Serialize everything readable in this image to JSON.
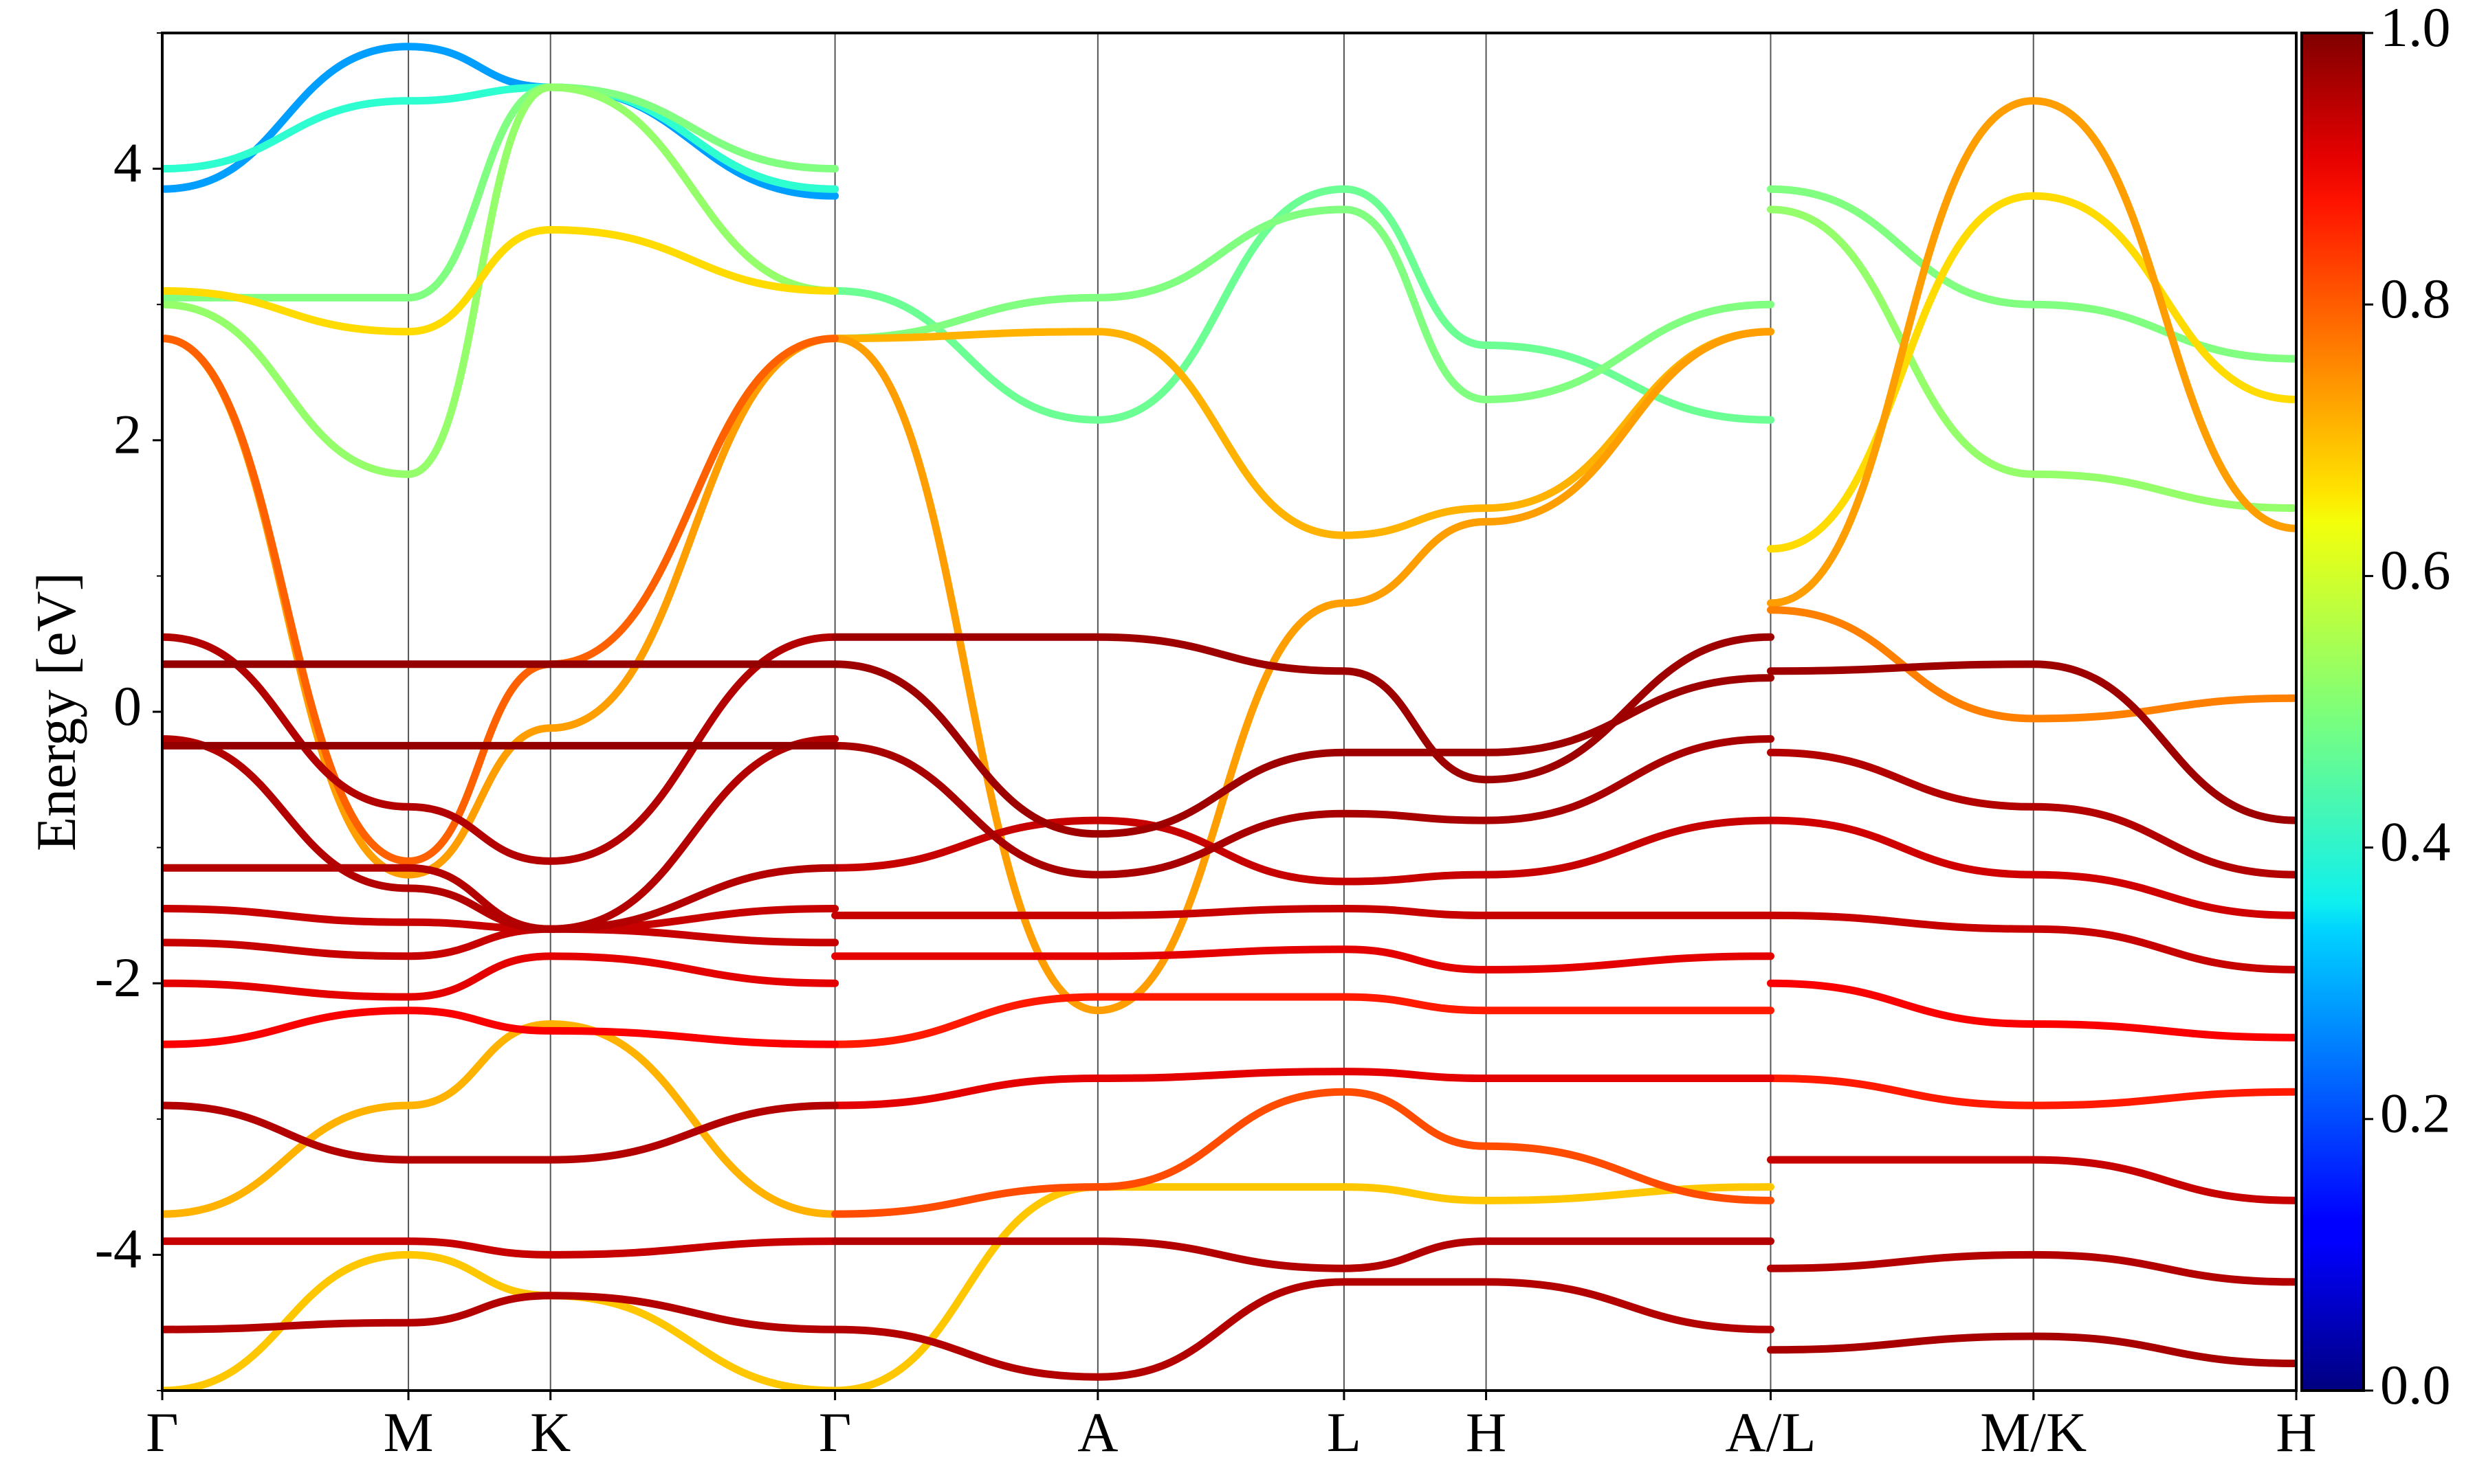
{
  "chart_data": {
    "type": "line",
    "title": "",
    "xlabel": "",
    "ylabel": "Energy [eV]",
    "ylim": [
      -5,
      5
    ],
    "yticks": [
      {
        "value": 4,
        "label": "4"
      },
      {
        "value": 2,
        "label": "2"
      },
      {
        "value": 0,
        "label": "0"
      },
      {
        "value": -2,
        "label": "-2"
      },
      {
        "value": -4,
        "label": "-4"
      }
    ],
    "kpath": [
      {
        "label": "Γ",
        "x": 0.0
      },
      {
        "label": "M",
        "x": 0.577
      },
      {
        "label": "K",
        "x": 0.91
      },
      {
        "label": "Γ",
        "x": 1.577
      },
      {
        "label": "A",
        "x": 2.193
      },
      {
        "label": "L",
        "x": 2.77
      },
      {
        "label": "H",
        "x": 3.103
      },
      {
        "label": "A/L",
        "x": 3.77
      },
      {
        "label": "M/K",
        "x": 4.386
      },
      {
        "label": "H",
        "x": 5.002
      }
    ],
    "xlim": [
      0,
      5.002
    ],
    "grid": false,
    "colorbar": {
      "range": [
        0.0,
        1.0
      ],
      "colormap": "jet",
      "ticks": [
        {
          "value": 0.0,
          "label": "0.0"
        },
        {
          "value": 0.2,
          "label": "0.2"
        },
        {
          "value": 0.4,
          "label": "0.4"
        },
        {
          "value": 0.6,
          "label": "0.6"
        },
        {
          "value": 0.8,
          "label": "0.8"
        },
        {
          "value": 1.0,
          "label": "1.0"
        }
      ]
    },
    "series": [
      {
        "x": [
          0.0,
          0.577,
          0.91,
          1.577
        ],
        "y": [
          2.75,
          -1.1,
          0.35,
          2.75
        ],
        "weight": 0.78
      },
      {
        "x": [
          0.0,
          0.577,
          0.91,
          1.577
        ],
        "y": [
          2.75,
          -1.2,
          -0.12,
          2.75
        ],
        "weight": 0.72
      },
      {
        "x": [
          0.0,
          0.577,
          0.91,
          1.577
        ],
        "y": [
          0.35,
          0.35,
          0.35,
          0.35
        ],
        "weight": 0.98
      },
      {
        "x": [
          0.0,
          0.577,
          0.91,
          1.577
        ],
        "y": [
          -0.25,
          -0.25,
          -0.25,
          -0.25
        ],
        "weight": 0.98
      },
      {
        "x": [
          0.0,
          0.577,
          0.91,
          1.577
        ],
        "y": [
          0.55,
          -0.7,
          -1.1,
          0.55
        ],
        "weight": 0.95
      },
      {
        "x": [
          0.0,
          0.577,
          0.91,
          1.577
        ],
        "y": [
          -0.2,
          -1.3,
          -1.6,
          -0.2
        ],
        "weight": 0.95
      },
      {
        "x": [
          0.0,
          0.577,
          0.91,
          1.577
        ],
        "y": [
          -1.15,
          -1.15,
          -1.6,
          -1.15
        ],
        "weight": 0.95
      },
      {
        "x": [
          0.0,
          0.577,
          0.91,
          1.577
        ],
        "y": [
          -1.45,
          -1.55,
          -1.6,
          -1.45
        ],
        "weight": 0.93
      },
      {
        "x": [
          0.0,
          0.577,
          0.91,
          1.577
        ],
        "y": [
          -1.7,
          -1.8,
          -1.6,
          -1.7
        ],
        "weight": 0.93
      },
      {
        "x": [
          0.0,
          0.577,
          0.91,
          1.577
        ],
        "y": [
          -2.0,
          -2.1,
          -1.8,
          -2.0
        ],
        "weight": 0.9
      },
      {
        "x": [
          0.0,
          0.577,
          0.91,
          1.577
        ],
        "y": [
          -2.45,
          -2.2,
          -2.35,
          -2.45
        ],
        "weight": 0.88
      },
      {
        "x": [
          0.0,
          0.577,
          0.91,
          1.577
        ],
        "y": [
          -3.7,
          -2.9,
          -2.3,
          -3.7
        ],
        "weight": 0.7
      },
      {
        "x": [
          0.0,
          0.577,
          0.91,
          1.577
        ],
        "y": [
          -2.9,
          -3.3,
          -3.3,
          -2.9
        ],
        "weight": 0.95
      },
      {
        "x": [
          0.0,
          0.577,
          0.91,
          1.577
        ],
        "y": [
          -3.9,
          -3.9,
          -4.0,
          -3.9
        ],
        "weight": 0.93
      },
      {
        "x": [
          0.0,
          0.577,
          0.91,
          1.577
        ],
        "y": [
          -4.55,
          -4.5,
          -4.3,
          -4.55
        ],
        "weight": 0.95
      },
      {
        "x": [
          0.0,
          0.577,
          0.91,
          1.577
        ],
        "y": [
          -5.0,
          -4.0,
          -4.3,
          -5.0
        ],
        "weight": 0.68
      },
      {
        "x": [
          0.0,
          0.577,
          0.91,
          1.577
        ],
        "y": [
          3.0,
          1.75,
          4.6,
          3.1
        ],
        "weight": 0.52
      },
      {
        "x": [
          0.0,
          0.577,
          0.91,
          1.577
        ],
        "y": [
          3.1,
          2.8,
          3.55,
          3.1
        ],
        "weight": 0.66
      },
      {
        "x": [
          0.0,
          0.577,
          0.91,
          1.577
        ],
        "y": [
          3.05,
          3.05,
          4.6,
          4.0
        ],
        "weight": 0.5
      },
      {
        "x": [
          0.0,
          0.577,
          0.91,
          1.577
        ],
        "y": [
          4.0,
          4.5,
          4.6,
          3.85
        ],
        "weight": 0.42
      },
      {
        "x": [
          0.0,
          0.577,
          0.91,
          1.577
        ],
        "y": [
          3.85,
          4.9,
          4.6,
          3.8
        ],
        "weight": 0.28
      },
      {
        "x": [
          1.577,
          2.193,
          2.77,
          3.103,
          3.77
        ],
        "y": [
          2.75,
          3.05,
          3.7,
          2.3,
          3.0
        ],
        "weight": 0.5
      },
      {
        "x": [
          1.577,
          2.193,
          2.77,
          3.103,
          3.77
        ],
        "y": [
          2.75,
          2.8,
          1.3,
          1.5,
          2.8
        ],
        "weight": 0.7
      },
      {
        "x": [
          1.577,
          2.193,
          2.77,
          3.103,
          3.77
        ],
        "y": [
          3.1,
          2.15,
          3.85,
          2.7,
          2.15
        ],
        "weight": 0.48
      },
      {
        "x": [
          1.577,
          2.193,
          2.77,
          3.103,
          3.77
        ],
        "y": [
          2.75,
          -2.2,
          0.8,
          1.4,
          2.8
        ],
        "weight": 0.72
      },
      {
        "x": [
          1.577,
          2.193,
          2.77,
          3.103,
          3.77
        ],
        "y": [
          0.55,
          0.55,
          0.3,
          -0.5,
          0.55
        ],
        "weight": 0.97
      },
      {
        "x": [
          1.577,
          2.193,
          2.77,
          3.103,
          3.77
        ],
        "y": [
          0.35,
          -0.9,
          -0.3,
          -0.3,
          0.25
        ],
        "weight": 0.97
      },
      {
        "x": [
          1.577,
          2.193,
          2.77,
          3.103,
          3.77
        ],
        "y": [
          -0.25,
          -1.2,
          -0.75,
          -0.8,
          -0.2
        ],
        "weight": 0.96
      },
      {
        "x": [
          1.577,
          2.193,
          2.77,
          3.103,
          3.77
        ],
        "y": [
          -1.15,
          -0.8,
          -1.25,
          -1.2,
          -0.8
        ],
        "weight": 0.93
      },
      {
        "x": [
          1.577,
          2.193,
          2.77,
          3.103,
          3.77
        ],
        "y": [
          -1.5,
          -1.5,
          -1.45,
          -1.5,
          -1.5
        ],
        "weight": 0.93
      },
      {
        "x": [
          1.577,
          2.193,
          2.77,
          3.103,
          3.77
        ],
        "y": [
          -1.8,
          -1.8,
          -1.75,
          -1.9,
          -1.8
        ],
        "weight": 0.9
      },
      {
        "x": [
          1.577,
          2.193,
          2.77,
          3.103,
          3.77
        ],
        "y": [
          -2.45,
          -2.1,
          -2.1,
          -2.2,
          -2.2
        ],
        "weight": 0.85
      },
      {
        "x": [
          1.577,
          2.193,
          2.77,
          3.103,
          3.77
        ],
        "y": [
          -2.9,
          -2.7,
          -2.65,
          -2.7,
          -2.7
        ],
        "weight": 0.9
      },
      {
        "x": [
          1.577,
          2.193,
          2.77,
          3.103,
          3.77
        ],
        "y": [
          -3.7,
          -3.5,
          -2.8,
          -3.2,
          -3.6
        ],
        "weight": 0.8
      },
      {
        "x": [
          1.577,
          2.193,
          2.77,
          3.103,
          3.77
        ],
        "y": [
          -3.9,
          -3.9,
          -4.1,
          -3.9,
          -3.9
        ],
        "weight": 0.95
      },
      {
        "x": [
          1.577,
          2.193,
          2.77,
          3.103,
          3.77
        ],
        "y": [
          -5.0,
          -3.5,
          -3.5,
          -3.6,
          -3.5
        ],
        "weight": 0.68
      },
      {
        "x": [
          1.577,
          2.193,
          2.77,
          3.103,
          3.77
        ],
        "y": [
          -4.55,
          -4.9,
          -4.2,
          -4.2,
          -4.55
        ],
        "weight": 0.95
      },
      {
        "x": [
          3.77,
          4.386,
          5.002
        ],
        "y": [
          3.85,
          3.0,
          2.6
        ],
        "weight": 0.5
      },
      {
        "x": [
          3.77,
          4.386,
          5.002
        ],
        "y": [
          3.7,
          1.75,
          1.5
        ],
        "weight": 0.52
      },
      {
        "x": [
          3.77,
          4.386,
          5.002
        ],
        "y": [
          1.2,
          3.8,
          2.3
        ],
        "weight": 0.66
      },
      {
        "x": [
          3.77,
          4.386,
          5.002
        ],
        "y": [
          0.8,
          4.5,
          1.35
        ],
        "weight": 0.72
      },
      {
        "x": [
          3.77,
          4.386,
          5.002
        ],
        "y": [
          0.75,
          -0.05,
          0.1
        ],
        "weight": 0.75
      },
      {
        "x": [
          3.77,
          4.386,
          5.002
        ],
        "y": [
          0.3,
          0.35,
          -0.8
        ],
        "weight": 0.97
      },
      {
        "x": [
          3.77,
          4.386,
          5.002
        ],
        "y": [
          -0.3,
          -0.7,
          -1.2
        ],
        "weight": 0.95
      },
      {
        "x": [
          3.77,
          4.386,
          5.002
        ],
        "y": [
          -0.8,
          -1.2,
          -1.5
        ],
        "weight": 0.92
      },
      {
        "x": [
          3.77,
          4.386,
          5.002
        ],
        "y": [
          -1.5,
          -1.6,
          -1.9
        ],
        "weight": 0.93
      },
      {
        "x": [
          3.77,
          4.386,
          5.002
        ],
        "y": [
          -2.0,
          -2.3,
          -2.4
        ],
        "weight": 0.88
      },
      {
        "x": [
          3.77,
          4.386,
          5.002
        ],
        "y": [
          -2.7,
          -2.9,
          -2.8
        ],
        "weight": 0.85
      },
      {
        "x": [
          3.77,
          4.386,
          5.002
        ],
        "y": [
          -3.3,
          -3.3,
          -3.6
        ],
        "weight": 0.93
      },
      {
        "x": [
          3.77,
          4.386,
          5.002
        ],
        "y": [
          -4.1,
          -4.0,
          -4.2
        ],
        "weight": 0.95
      },
      {
        "x": [
          3.77,
          4.386,
          5.002
        ],
        "y": [
          -4.7,
          -4.6,
          -4.8
        ],
        "weight": 0.96
      }
    ]
  }
}
